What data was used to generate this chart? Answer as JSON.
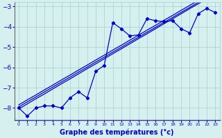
{
  "xlabel": "Graphe des températures (°c)",
  "x": [
    0,
    1,
    2,
    3,
    4,
    5,
    6,
    7,
    8,
    9,
    10,
    11,
    12,
    13,
    14,
    15,
    16,
    17,
    18,
    19,
    20,
    21,
    22,
    23
  ],
  "y_main": [
    -8.0,
    -8.4,
    -8.0,
    -7.9,
    -7.9,
    -8.0,
    -7.5,
    -7.2,
    -7.5,
    -6.2,
    -5.9,
    -3.8,
    -4.1,
    -4.45,
    -4.4,
    -3.6,
    -3.7,
    -3.75,
    -3.7,
    -4.1,
    -4.3,
    -3.35,
    -3.1,
    -3.3
  ],
  "y_reg1": [
    -7.85,
    -7.6,
    -7.36,
    -7.11,
    -6.87,
    -6.62,
    -6.38,
    -6.13,
    -5.89,
    -5.64,
    -5.4,
    -5.15,
    -4.91,
    -4.66,
    -4.42,
    -4.17,
    -3.93,
    -3.68,
    -3.44,
    -3.19,
    -2.95,
    -2.7,
    -2.46,
    -2.21
  ],
  "y_reg2": [
    -7.95,
    -7.7,
    -7.46,
    -7.21,
    -6.97,
    -6.72,
    -6.48,
    -6.23,
    -5.99,
    -5.74,
    -5.5,
    -5.25,
    -5.01,
    -4.76,
    -4.52,
    -4.27,
    -4.03,
    -3.78,
    -3.54,
    -3.29,
    -3.05,
    -2.8,
    -2.56,
    -2.31
  ],
  "y_reg3": [
    -8.05,
    -7.8,
    -7.55,
    -7.31,
    -7.06,
    -6.81,
    -6.57,
    -6.32,
    -6.07,
    -5.83,
    -5.58,
    -5.33,
    -5.09,
    -4.84,
    -4.59,
    -4.35,
    -4.1,
    -3.85,
    -3.61,
    -3.36,
    -3.11,
    -2.87,
    -2.62,
    -2.37
  ],
  "line_color": "#0000cc",
  "bg_color": "#d6f0f0",
  "grid_color": "#aacccc",
  "ylim": [
    -8.6,
    -2.8
  ],
  "yticks": [
    -8,
    -7,
    -6,
    -5,
    -4,
    -3
  ],
  "xlim": [
    -0.5,
    23.5
  ]
}
